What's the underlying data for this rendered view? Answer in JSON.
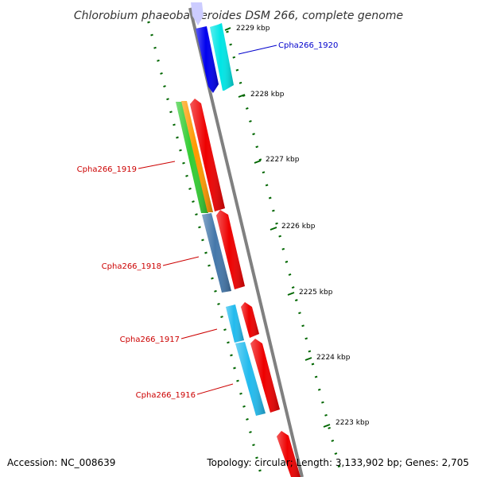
{
  "title": "Chlorobium phaeobacteroides DSM 266, complete genome",
  "footer": {
    "accession": "Accession: NC_008639",
    "summary": "Topology: circular; Length: 3,133,902 bp; Genes: 2,705"
  },
  "colors": {
    "backbone": "#808080",
    "tick": "#006600",
    "label_red": "#cc0000",
    "label_blue": "#0000cc"
  },
  "scale_ticks": [
    {
      "label": "2229 kbp"
    },
    {
      "label": "2228 kbp"
    },
    {
      "label": "2227 kbp"
    },
    {
      "label": "2226 kbp"
    },
    {
      "label": "2225 kbp"
    },
    {
      "label": "2224 kbp"
    },
    {
      "label": "2223 kbp"
    }
  ],
  "gene_labels": [
    {
      "name": "Cpha266_1920",
      "color": "#0000cc"
    },
    {
      "name": "Cpha266_1919",
      "color": "#cc0000"
    },
    {
      "name": "Cpha266_1918",
      "color": "#cc0000"
    },
    {
      "name": "Cpha266_1917",
      "color": "#cc0000"
    },
    {
      "name": "Cpha266_1916",
      "color": "#cc0000"
    }
  ],
  "features": [
    {
      "name": "cds-blue",
      "color": "#0000ee"
    },
    {
      "name": "cds-cyan",
      "color": "#00e5e5"
    },
    {
      "name": "cds-green",
      "color": "#33cc33"
    },
    {
      "name": "cds-orange",
      "color": "#ff9900"
    },
    {
      "name": "cds-red-upper",
      "color": "#ee0000"
    },
    {
      "name": "cds-steelblue",
      "color": "#4477aa"
    },
    {
      "name": "cds-red-middle",
      "color": "#ee0000"
    },
    {
      "name": "cds-skyblue-short",
      "color": "#22bbee"
    },
    {
      "name": "cds-red-short",
      "color": "#ee0000"
    },
    {
      "name": "cds-skyblue-long",
      "color": "#22bbee"
    },
    {
      "name": "cds-red-long",
      "color": "#ee0000"
    },
    {
      "name": "cds-red-bottom",
      "color": "#ee0000"
    },
    {
      "name": "cds-lavender-top",
      "color": "#ccccff"
    }
  ]
}
